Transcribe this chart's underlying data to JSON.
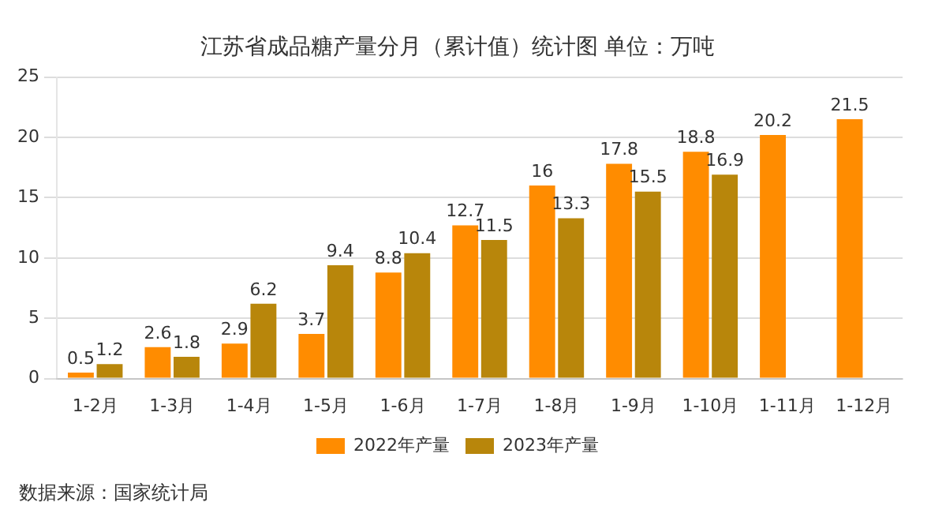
{
  "chart_data": {
    "type": "bar",
    "title": "江苏省成品糖产量分月（累计值）统计图 单位：万吨",
    "categories": [
      "1-2月",
      "1-3月",
      "1-4月",
      "1-5月",
      "1-6月",
      "1-7月",
      "1-8月",
      "1-9月",
      "1-10月",
      "1-11月",
      "1-12月"
    ],
    "series": [
      {
        "name": "2022年产量",
        "color": "#ff8c00",
        "values": [
          0.5,
          2.6,
          2.9,
          3.7,
          8.8,
          12.7,
          16,
          17.8,
          18.8,
          20.2,
          21.5
        ]
      },
      {
        "name": "2023年产量",
        "color": "#b8860b",
        "values": [
          1.2,
          1.8,
          6.2,
          9.4,
          10.4,
          11.5,
          13.3,
          15.5,
          16.9,
          null,
          null
        ]
      }
    ],
    "ylim": [
      0,
      25
    ],
    "yticks": [
      0,
      5,
      10,
      15,
      20,
      25
    ],
    "grid": "y",
    "legend": "bottom",
    "data_labels": true,
    "annotations": [
      "数据来源：国家统计局"
    ]
  }
}
